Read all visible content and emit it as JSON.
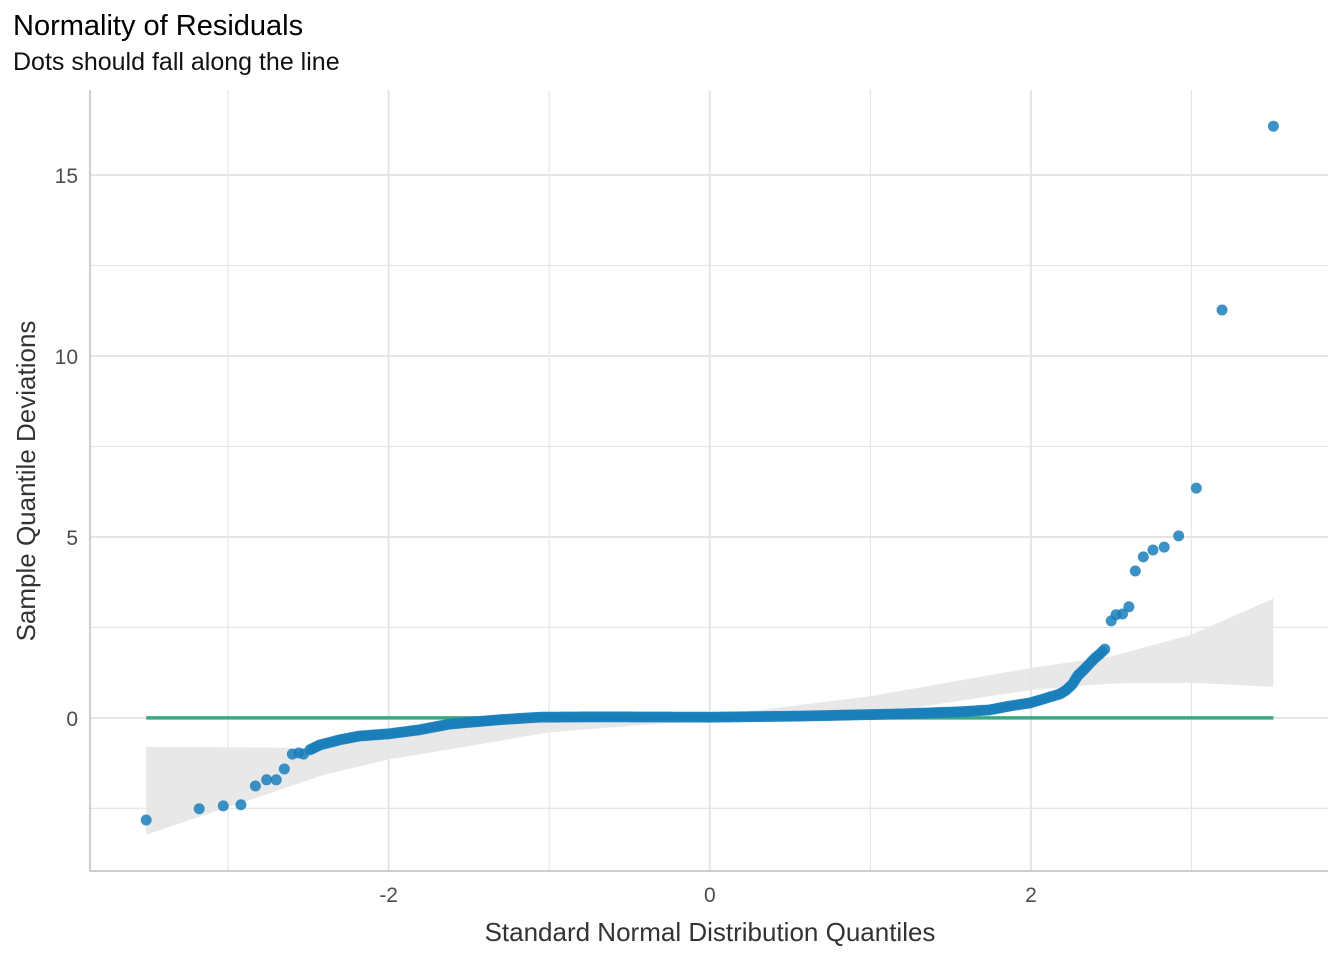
{
  "chart_data": {
    "type": "scatter",
    "title": "Normality of Residuals",
    "subtitle": "Dots should fall along the line",
    "xlabel": "Standard Normal Distribution Quantiles",
    "ylabel": "Sample Quantile Deviations",
    "xlim": [
      -3.86,
      3.85
    ],
    "ylim": [
      -4.23,
      17.35
    ],
    "xticks": [
      {
        "v": -2,
        "label": "-2"
      },
      {
        "v": 0,
        "label": "0"
      },
      {
        "v": 2,
        "label": "2"
      }
    ],
    "yticks": [
      {
        "v": 0,
        "label": "0"
      },
      {
        "v": 5,
        "label": "5"
      },
      {
        "v": 10,
        "label": "10"
      },
      {
        "v": 15,
        "label": "15"
      }
    ],
    "x_minor": [
      -3,
      -1,
      1,
      3
    ],
    "y_minor": [
      -2.5,
      2.5,
      7.5,
      12.5
    ],
    "grid": true,
    "colors": {
      "points": "#1a7fbb",
      "line": "#3aa981",
      "band": "#e6e6e6",
      "grid": "#e5e5e5",
      "axis": "#bdbdbd",
      "text": "#4d4d4d"
    },
    "reference_line": {
      "y": 0,
      "x": [
        -3.51,
        3.51
      ]
    },
    "band": {
      "x": [
        -3.51,
        -2.4,
        -2,
        -1,
        0,
        1,
        2,
        2.5,
        3,
        3.51
      ],
      "upper": [
        -0.8,
        -0.83,
        -0.35,
        -0.1,
        0.05,
        0.6,
        1.38,
        1.7,
        2.3,
        3.3
      ],
      "lower": [
        -3.23,
        -1.57,
        -1.15,
        -0.4,
        -0.05,
        0.1,
        0.77,
        0.95,
        0.97,
        0.86
      ]
    },
    "points": [
      [
        -3.51,
        -2.82
      ],
      [
        -3.18,
        -2.51
      ],
      [
        -3.03,
        -2.43
      ],
      [
        -2.92,
        -2.4
      ],
      [
        -2.83,
        -1.88
      ],
      [
        -2.76,
        -1.71
      ],
      [
        -2.7,
        -1.71
      ],
      [
        -2.65,
        -1.41
      ],
      [
        -2.6,
        -1.0
      ],
      [
        -2.56,
        -0.97
      ],
      [
        -2.53,
        -1.0
      ],
      [
        -2.49,
        -0.88
      ],
      [
        -2.43,
        -0.75
      ],
      [
        -2.3,
        -0.6
      ],
      [
        -2.18,
        -0.5
      ],
      [
        -2.0,
        -0.44
      ],
      [
        -1.81,
        -0.33
      ],
      [
        -1.62,
        -0.17
      ],
      [
        -1.31,
        -0.05
      ],
      [
        -1.06,
        0.02
      ],
      [
        -0.69,
        0.03
      ],
      [
        0,
        0.02
      ],
      [
        0.56,
        0.05
      ],
      [
        1.18,
        0.11
      ],
      [
        1.56,
        0.17
      ],
      [
        1.74,
        0.22
      ],
      [
        1.87,
        0.33
      ],
      [
        1.99,
        0.41
      ],
      [
        2.06,
        0.5
      ],
      [
        2.12,
        0.58
      ],
      [
        2.18,
        0.66
      ],
      [
        2.22,
        0.77
      ],
      [
        2.26,
        0.94
      ],
      [
        2.29,
        1.16
      ],
      [
        2.34,
        1.38
      ],
      [
        2.37,
        1.52
      ],
      [
        2.4,
        1.66
      ],
      [
        2.43,
        1.77
      ],
      [
        2.46,
        1.9
      ],
      [
        2.5,
        2.68
      ],
      [
        2.53,
        2.85
      ],
      [
        2.57,
        2.87
      ],
      [
        2.61,
        3.07
      ],
      [
        2.65,
        4.06
      ],
      [
        2.7,
        4.45
      ],
      [
        2.76,
        4.64
      ],
      [
        2.83,
        4.72
      ],
      [
        2.92,
        5.03
      ],
      [
        3.03,
        6.35
      ],
      [
        3.19,
        11.27
      ],
      [
        3.51,
        16.35
      ]
    ]
  }
}
